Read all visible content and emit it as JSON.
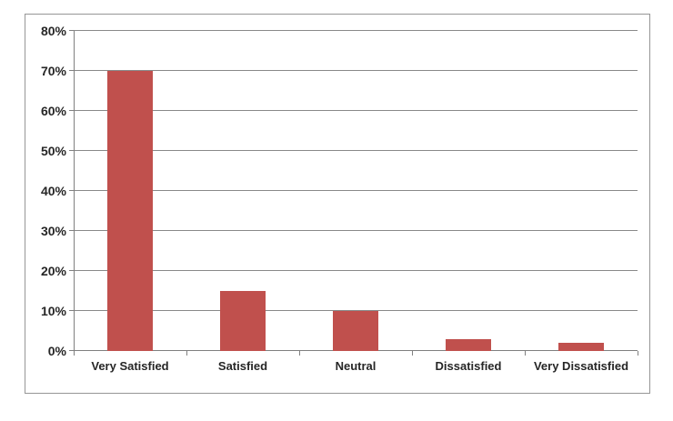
{
  "chart_data": {
    "type": "bar",
    "title": "",
    "categories": [
      "Very Satisfied",
      "Satisfied",
      "Neutral",
      "Dissatisfied",
      "Very Dissatisfied"
    ],
    "values": [
      70,
      15,
      10,
      3,
      2
    ],
    "value_unit": "%",
    "xlabel": "",
    "ylabel": "",
    "ylim": [
      0,
      80
    ],
    "ytick_step": 10,
    "ytick_labels": [
      "0%",
      "10%",
      "20%",
      "30%",
      "40%",
      "50%",
      "60%",
      "70%",
      "80%"
    ],
    "grid": true,
    "legend_position": "none",
    "colors": {
      "bar": "#C0504D",
      "gridline": "#898989",
      "axis": "#808080",
      "frame_border": "#969696",
      "text": "#262626",
      "background": "#FFFFFF"
    }
  }
}
